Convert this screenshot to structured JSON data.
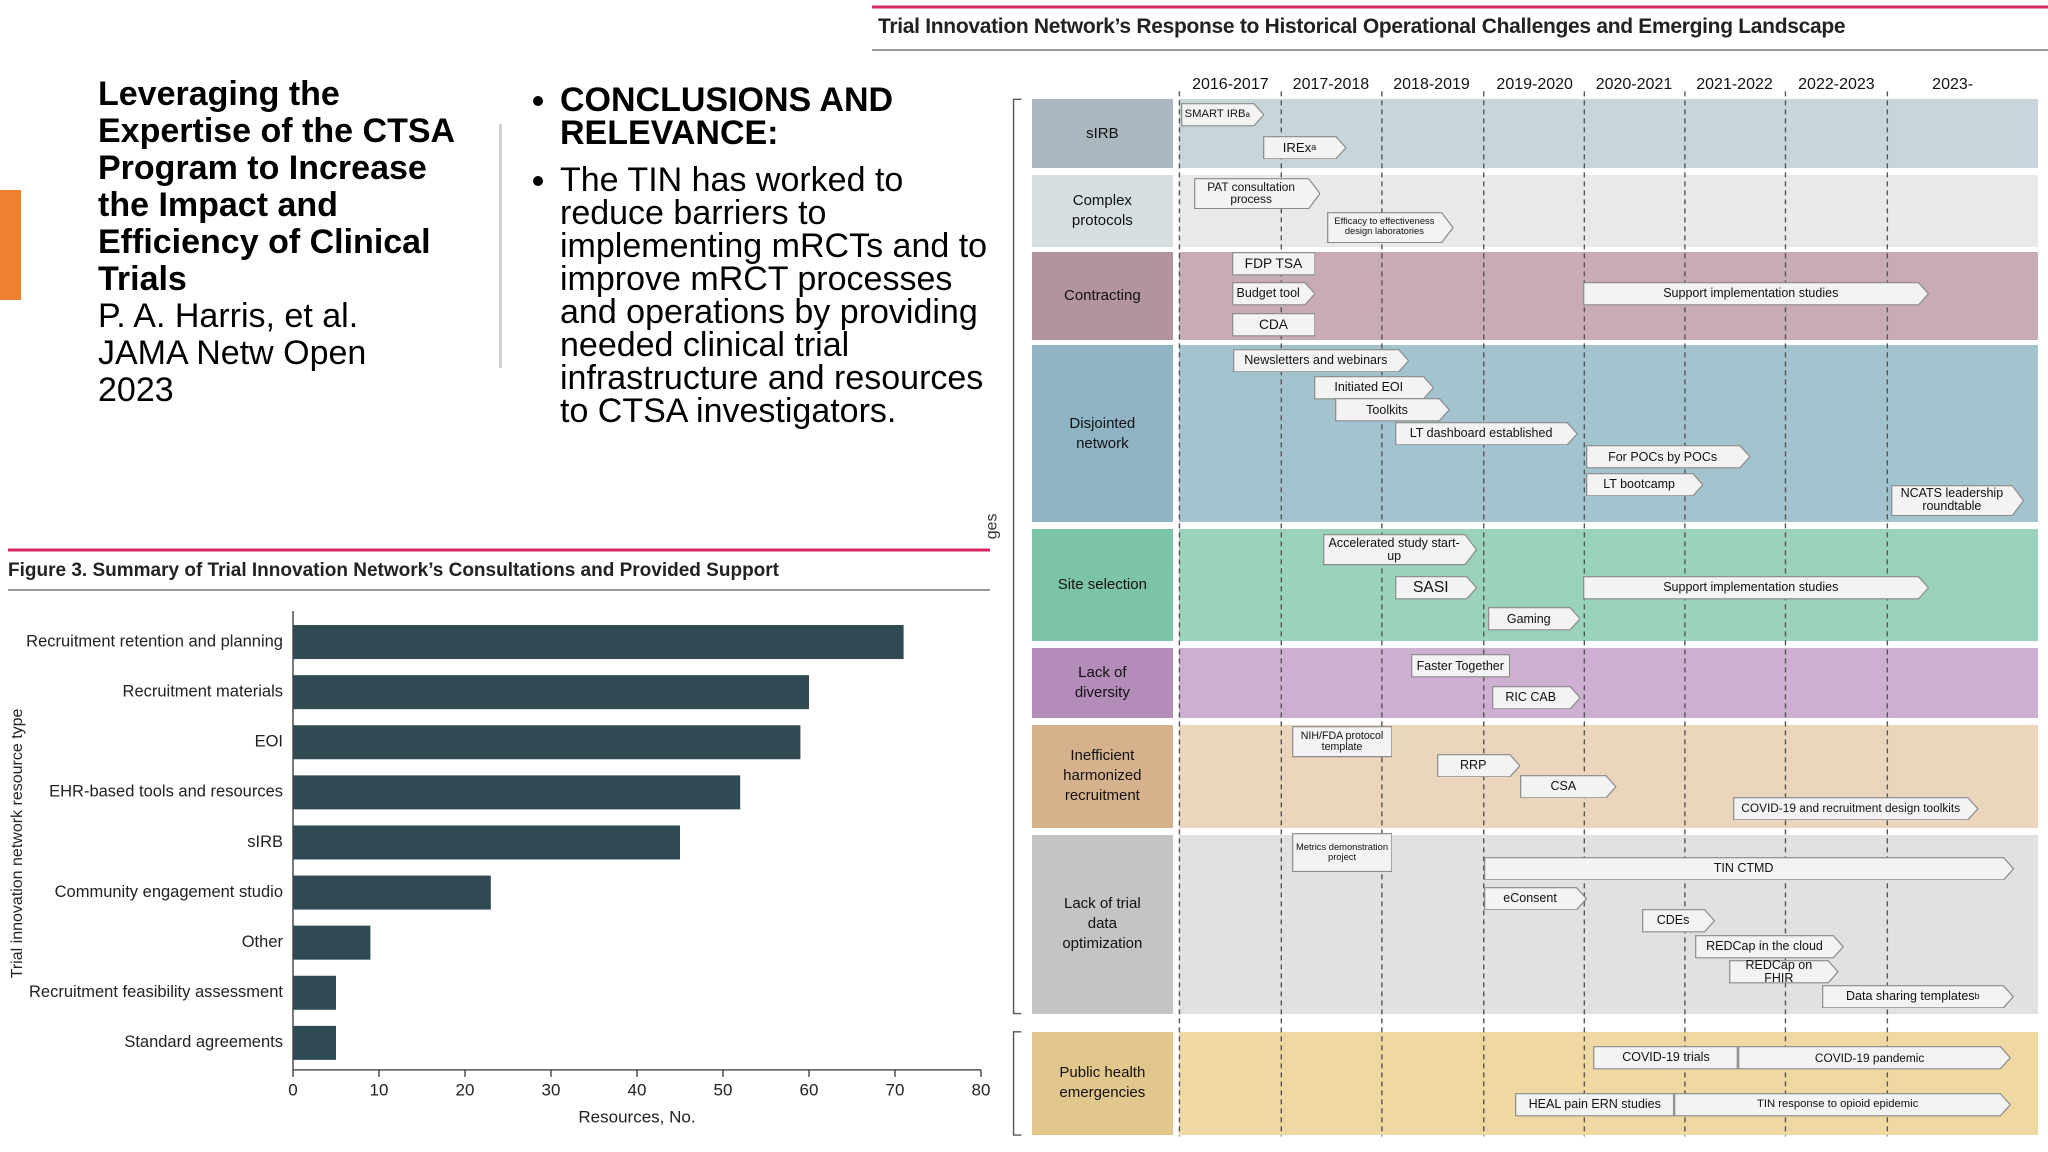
{
  "title_block": {
    "title": "Leveraging the Expertise of the CTSA Program to Increase the Impact and Efficiency of Clinical Trials",
    "authors": "P. A. Harris, et al.",
    "journal": "JAMA Netw Open",
    "year": "2023"
  },
  "conclusions": {
    "heading": "CONCLUSIONS AND RELEVANCE:",
    "text": "The TIN has worked to reduce barriers to implementing mRCTs and to improve mRCT processes and operations by providing needed clinical trial infrastructure and resources to CTSA investigators."
  },
  "chart_data": {
    "type": "bar",
    "orientation": "horizontal",
    "title": "Figure 3. Summary of Trial Innovation Network’s Consultations and Provided Support",
    "x_label": "Resources, No.",
    "y_label": "Trial innovation network resource type",
    "categories": [
      "Recruitment retention and planning",
      "Recruitment materials",
      "EOI",
      "EHR-based tools and resources",
      "sIRB",
      "Community engagement studio",
      "Other",
      "Recruitment feasibility assessment",
      "Standard agreements"
    ],
    "values": [
      71,
      60,
      59,
      52,
      45,
      23,
      9,
      5,
      5
    ],
    "color": "#2f4a52",
    "xlim": [
      0,
      80
    ],
    "xticks": [
      0,
      10,
      20,
      30,
      40,
      50,
      60,
      70,
      80
    ],
    "grid": false
  },
  "timeline": {
    "title": "Trial Innovation Network’s Response to Historical Operational Challenges and Emerging Landscape",
    "side_label": "ges",
    "years": [
      "2016-2017",
      "2017-2018",
      "2018-2019",
      "2019-2020",
      "2020-2021",
      "2021-2022",
      "2022-2023",
      "2023-"
    ],
    "rows": [
      {
        "label": "sIRB",
        "items": [
          {
            "text": "SMART IRB",
            "sup": "a"
          },
          {
            "text": "IREx",
            "sup": "a"
          }
        ]
      },
      {
        "label": "Complex protocols",
        "items": [
          {
            "text": "PAT consultation process"
          },
          {
            "text": "Efficacy to effectiveness design laboratories"
          }
        ]
      },
      {
        "label": "Contracting",
        "items": [
          {
            "text": "FDP TSA"
          },
          {
            "text": "Budget tool"
          },
          {
            "text": "CDA"
          },
          {
            "text": "Support implementation studies"
          }
        ]
      },
      {
        "label": "Disjointed network",
        "items": [
          {
            "text": "Newsletters and webinars"
          },
          {
            "text": "Initiated EOI"
          },
          {
            "text": "Toolkits"
          },
          {
            "text": "LT dashboard established"
          },
          {
            "text": "For POCs by POCs"
          },
          {
            "text": "LT bootcamp"
          },
          {
            "text": "NCATS leadership roundtable"
          }
        ]
      },
      {
        "label": "Site selection",
        "items": [
          {
            "text": "Accelerated study start-up"
          },
          {
            "text": "SASI"
          },
          {
            "text": "Support implementation studies"
          },
          {
            "text": "Gaming"
          }
        ]
      },
      {
        "label": "Lack of diversity",
        "items": [
          {
            "text": "Faster Together"
          },
          {
            "text": "RIC CAB"
          }
        ]
      },
      {
        "label": "Inefficient harmonized recruitment",
        "items": [
          {
            "text": "NIH/FDA protocol template"
          },
          {
            "text": "RRP"
          },
          {
            "text": "CSA"
          },
          {
            "text": "COVID-19 and recruitment design toolkits"
          }
        ]
      },
      {
        "label": "Lack of trial data optimization",
        "items": [
          {
            "text": "Metrics demonstration project"
          },
          {
            "text": "TIN CTMD"
          },
          {
            "text": "eConsent"
          },
          {
            "text": "CDEs"
          },
          {
            "text": "REDCap in the cloud"
          },
          {
            "text": "REDCap on FHIR"
          },
          {
            "text": "Data sharing templates",
            "sup": "b"
          }
        ]
      },
      {
        "label": "Public health emergencies",
        "items": [
          {
            "text": "COVID-19 trials"
          },
          {
            "text": "COVID-19 pandemic"
          },
          {
            "text": "HEAL pain ERN studies"
          },
          {
            "text": "TIN response to opioid epidemic"
          }
        ]
      }
    ]
  }
}
